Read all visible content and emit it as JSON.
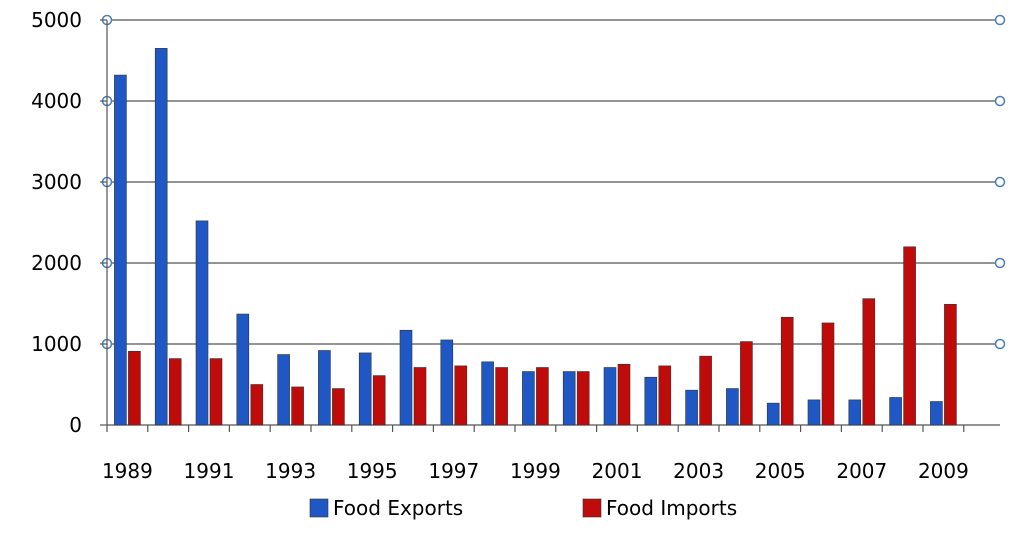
{
  "chart_data": {
    "type": "bar",
    "title": "",
    "xlabel": "",
    "ylabel": "",
    "ylim": [
      0,
      5000
    ],
    "yticks": [
      0,
      1000,
      2000,
      3000,
      4000,
      5000
    ],
    "ytick_labels": [
      "0",
      "1000",
      "2000",
      "3000",
      "4000",
      "5000"
    ],
    "grid": true,
    "legend": "bottom",
    "categories": [
      "1989",
      "1990",
      "1991",
      "1992",
      "1993",
      "1994",
      "1995",
      "1996",
      "1997",
      "1998",
      "1999",
      "2000",
      "2001",
      "2002",
      "2003",
      "2004",
      "2005",
      "2006",
      "2007",
      "2008",
      "2009"
    ],
    "xtick_labels": [
      "1989",
      "",
      "1991",
      "",
      "1993",
      "",
      "1995",
      "",
      "1997",
      "",
      "1999",
      "",
      "2001",
      "",
      "2003",
      "",
      "2005",
      "",
      "2007",
      "",
      "2009"
    ],
    "series": [
      {
        "name": "Food Exports",
        "color": "#1f57c5",
        "values": [
          4320,
          4650,
          2520,
          1370,
          870,
          920,
          890,
          1170,
          1050,
          780,
          660,
          660,
          710,
          590,
          430,
          450,
          270,
          310,
          310,
          340,
          290
        ]
      },
      {
        "name": "Food Imports",
        "color": "#c00b0b",
        "values": [
          910,
          820,
          820,
          500,
          470,
          450,
          610,
          710,
          730,
          710,
          710,
          660,
          750,
          730,
          850,
          1030,
          1330,
          1260,
          1560,
          2200,
          1490
        ]
      }
    ]
  }
}
